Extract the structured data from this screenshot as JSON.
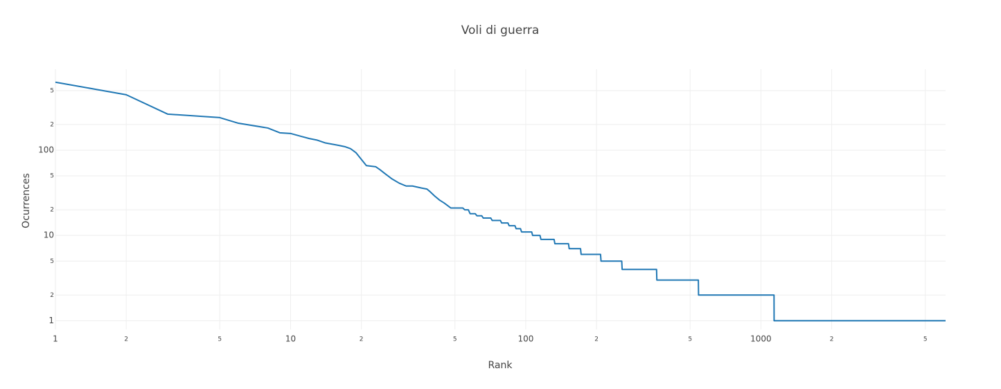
{
  "chart_data": {
    "type": "line",
    "title": "Voli di guerra",
    "x_label": "Rank",
    "y_label": "Ocurrences",
    "x": [
      1,
      2,
      3,
      5,
      6,
      8,
      9,
      10,
      11,
      12,
      13,
      14,
      16,
      17,
      18,
      19,
      21,
      23,
      24,
      25,
      27,
      29,
      31,
      33,
      36,
      38,
      39,
      41,
      43,
      45,
      48,
      54,
      55,
      57,
      58,
      61,
      62,
      65,
      66,
      71,
      72,
      78,
      79,
      84,
      85,
      90,
      91,
      95,
      96,
      106,
      107,
      115,
      116,
      132,
      133,
      152,
      153,
      171,
      172,
      208,
      209,
      256,
      257,
      360,
      361,
      542,
      543,
      1137,
      1138,
      6100
    ],
    "values": [
      627,
      447,
      265,
      241,
      207,
      182,
      160,
      157,
      146,
      137,
      131,
      122,
      114,
      110,
      104,
      93,
      66,
      64,
      59,
      54,
      46,
      41,
      38,
      38,
      36,
      35,
      33,
      29,
      26,
      24,
      21,
      21,
      20,
      20,
      18,
      18,
      17,
      17,
      16,
      16,
      15,
      15,
      14,
      14,
      13,
      13,
      12,
      12,
      11,
      11,
      10,
      10,
      9,
      9,
      8,
      8,
      7,
      7,
      6,
      6,
      5,
      5,
      4,
      4,
      3,
      3,
      2,
      2,
      1,
      1
    ],
    "color": "#1f77b4",
    "xscale": "log",
    "yscale": "log",
    "grid": true,
    "xlim": [
      1,
      6100
    ],
    "ylim": [
      0.79,
      890
    ],
    "xticks": [
      1,
      {
        "value": 2,
        "label": "2"
      },
      {
        "value": 5,
        "label": "5"
      },
      10,
      {
        "value": 20,
        "label": "2"
      },
      {
        "value": 50,
        "label": "5"
      },
      100,
      {
        "value": 200,
        "label": "2"
      },
      {
        "value": 500,
        "label": "5"
      },
      1000,
      {
        "value": 2000,
        "label": "2"
      },
      {
        "value": 5000,
        "label": "5"
      }
    ],
    "yticks": [
      1,
      {
        "value": 2,
        "label": "2"
      },
      {
        "value": 5,
        "label": "5"
      },
      10,
      {
        "value": 20,
        "label": "2"
      },
      {
        "value": 50,
        "label": "5"
      },
      100,
      {
        "value": 200,
        "label": "2"
      },
      {
        "value": 500,
        "label": "5"
      }
    ]
  }
}
